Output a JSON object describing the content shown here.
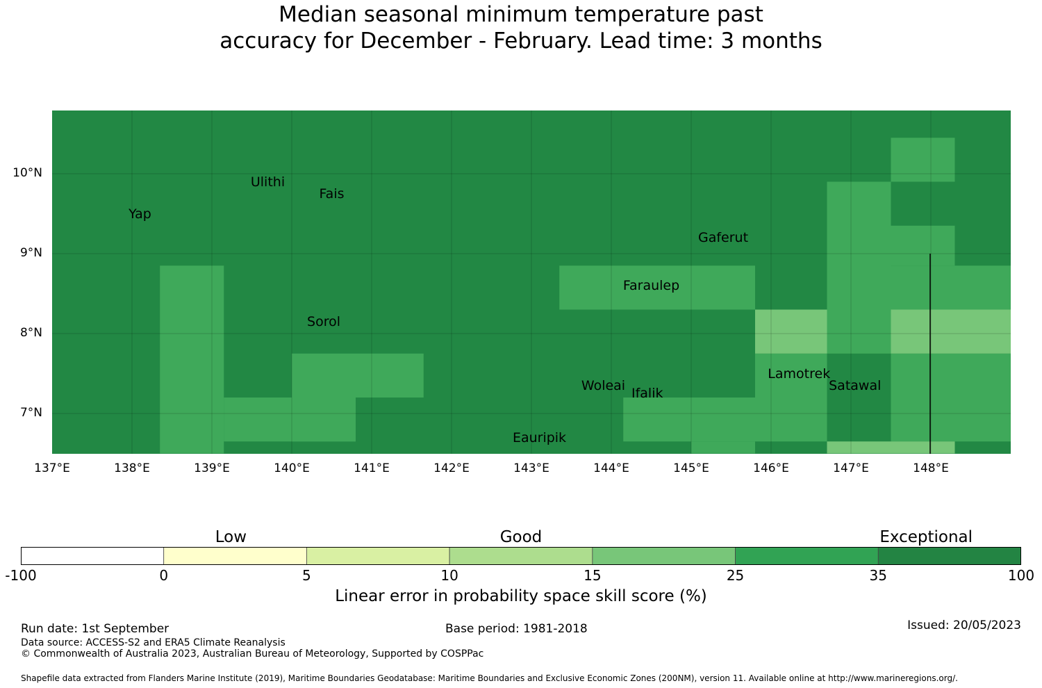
{
  "title": {
    "line1": "Median seasonal minimum temperature past",
    "line2": "accuracy for December - February. Lead time: 3 months"
  },
  "map": {
    "lon_labels": [
      "137°E",
      "138°E",
      "139°E",
      "140°E",
      "141°E",
      "142°E",
      "143°E",
      "144°E",
      "145°E",
      "146°E",
      "147°E",
      "148°E"
    ],
    "lat_labels": [
      "10°N",
      "9°N",
      "8°N",
      "7°N"
    ],
    "places": [
      {
        "name": "Yap",
        "lon": 138.1,
        "lat": 9.5
      },
      {
        "name": "Ulithi",
        "lon": 139.7,
        "lat": 9.9
      },
      {
        "name": "Fais",
        "lon": 140.5,
        "lat": 9.75
      },
      {
        "name": "Gaferut",
        "lon": 145.4,
        "lat": 9.2
      },
      {
        "name": "Faraulep",
        "lon": 144.5,
        "lat": 8.6
      },
      {
        "name": "Sorol",
        "lon": 140.4,
        "lat": 8.15
      },
      {
        "name": "Woleai",
        "lon": 143.9,
        "lat": 7.35
      },
      {
        "name": "Ifalik",
        "lon": 144.45,
        "lat": 7.25
      },
      {
        "name": "Lamotrek",
        "lon": 146.35,
        "lat": 7.5
      },
      {
        "name": "Satawal",
        "lon": 147.05,
        "lat": 7.35
      },
      {
        "name": "Eauripik",
        "lon": 143.1,
        "lat": 6.7
      }
    ],
    "base_color": "#228844",
    "regions": [
      {
        "color": "#3fa95a",
        "lon": [
          147.5,
          148.3
        ],
        "lat": [
          9.9,
          10.45
        ]
      },
      {
        "color": "#3fa95a",
        "lon": [
          146.7,
          147.5
        ],
        "lat": [
          7.75,
          9.9
        ]
      },
      {
        "color": "#3fa95a",
        "lon": [
          147.5,
          148.3
        ],
        "lat": [
          8.85,
          9.35
        ]
      },
      {
        "color": "#3fa95a",
        "lon": [
          147.5,
          149.0
        ],
        "lat": [
          8.3,
          8.85
        ]
      },
      {
        "color": "#3fa95a",
        "lon": [
          147.5,
          149.0
        ],
        "lat": [
          6.65,
          7.75
        ]
      },
      {
        "color": "#3fa95a",
        "lon": [
          138.35,
          139.15
        ],
        "lat": [
          6.5,
          8.85
        ]
      },
      {
        "color": "#3fa95a",
        "lon": [
          139.15,
          140.8
        ],
        "lat": [
          6.65,
          7.2
        ]
      },
      {
        "color": "#3fa95a",
        "lon": [
          140.0,
          141.65
        ],
        "lat": [
          7.2,
          7.75
        ]
      },
      {
        "color": "#3fa95a",
        "lon": [
          140.0,
          140.8
        ],
        "lat": [
          6.65,
          7.2
        ]
      },
      {
        "color": "#3fa95a",
        "lon": [
          143.35,
          145.8
        ],
        "lat": [
          8.3,
          8.85
        ]
      },
      {
        "color": "#3fa95a",
        "lon": [
          144.15,
          145.8
        ],
        "lat": [
          6.65,
          7.2
        ]
      },
      {
        "color": "#3fa95a",
        "lon": [
          145.0,
          145.8
        ],
        "lat": [
          6.5,
          6.65
        ]
      },
      {
        "color": "#3fa95a",
        "lon": [
          145.8,
          146.7
        ],
        "lat": [
          6.65,
          7.75
        ]
      },
      {
        "color": "#78c679",
        "lon": [
          145.8,
          146.7
        ],
        "lat": [
          7.75,
          8.3
        ]
      },
      {
        "color": "#78c679",
        "lon": [
          147.5,
          149.0
        ],
        "lat": [
          7.75,
          8.3
        ]
      },
      {
        "color": "#78c679",
        "lon": [
          146.7,
          148.3
        ],
        "lat": [
          6.5,
          6.65
        ]
      }
    ]
  },
  "colorbar": {
    "categories": [
      {
        "label": "Low",
        "at": 0.21
      },
      {
        "label": "Good",
        "at": 0.5
      },
      {
        "label": "Exceptional",
        "at": 0.905
      }
    ],
    "ticks": [
      "-100",
      "0",
      "5",
      "10",
      "15",
      "25",
      "35",
      "100"
    ],
    "colors": [
      "#ffffff",
      "#ffffcc",
      "#d9f0a3",
      "#addd8e",
      "#78c679",
      "#31a354",
      "#238443"
    ],
    "label": "Linear error in probability space skill score (%)"
  },
  "footer": {
    "run_date": "Run date: 1st September",
    "base_period": "Base period: 1981-2018",
    "issued": "Issued: 20/05/2023",
    "data_source": "Data source: ACCESS-S2 and ERA5 Climate Reanalysis",
    "copyright": "© Commonwealth of Australia 2023, Australian Bureau of Meteorology, Supported by COSPPac",
    "shapefile": "Shapefile data extracted from Flanders Marine Institute (2019), Maritime Boundaries Geodatabase: Maritime Boundaries and Exclusive Economic Zones (200NM), version 11. Available online at http://www.marineregions.org/."
  }
}
